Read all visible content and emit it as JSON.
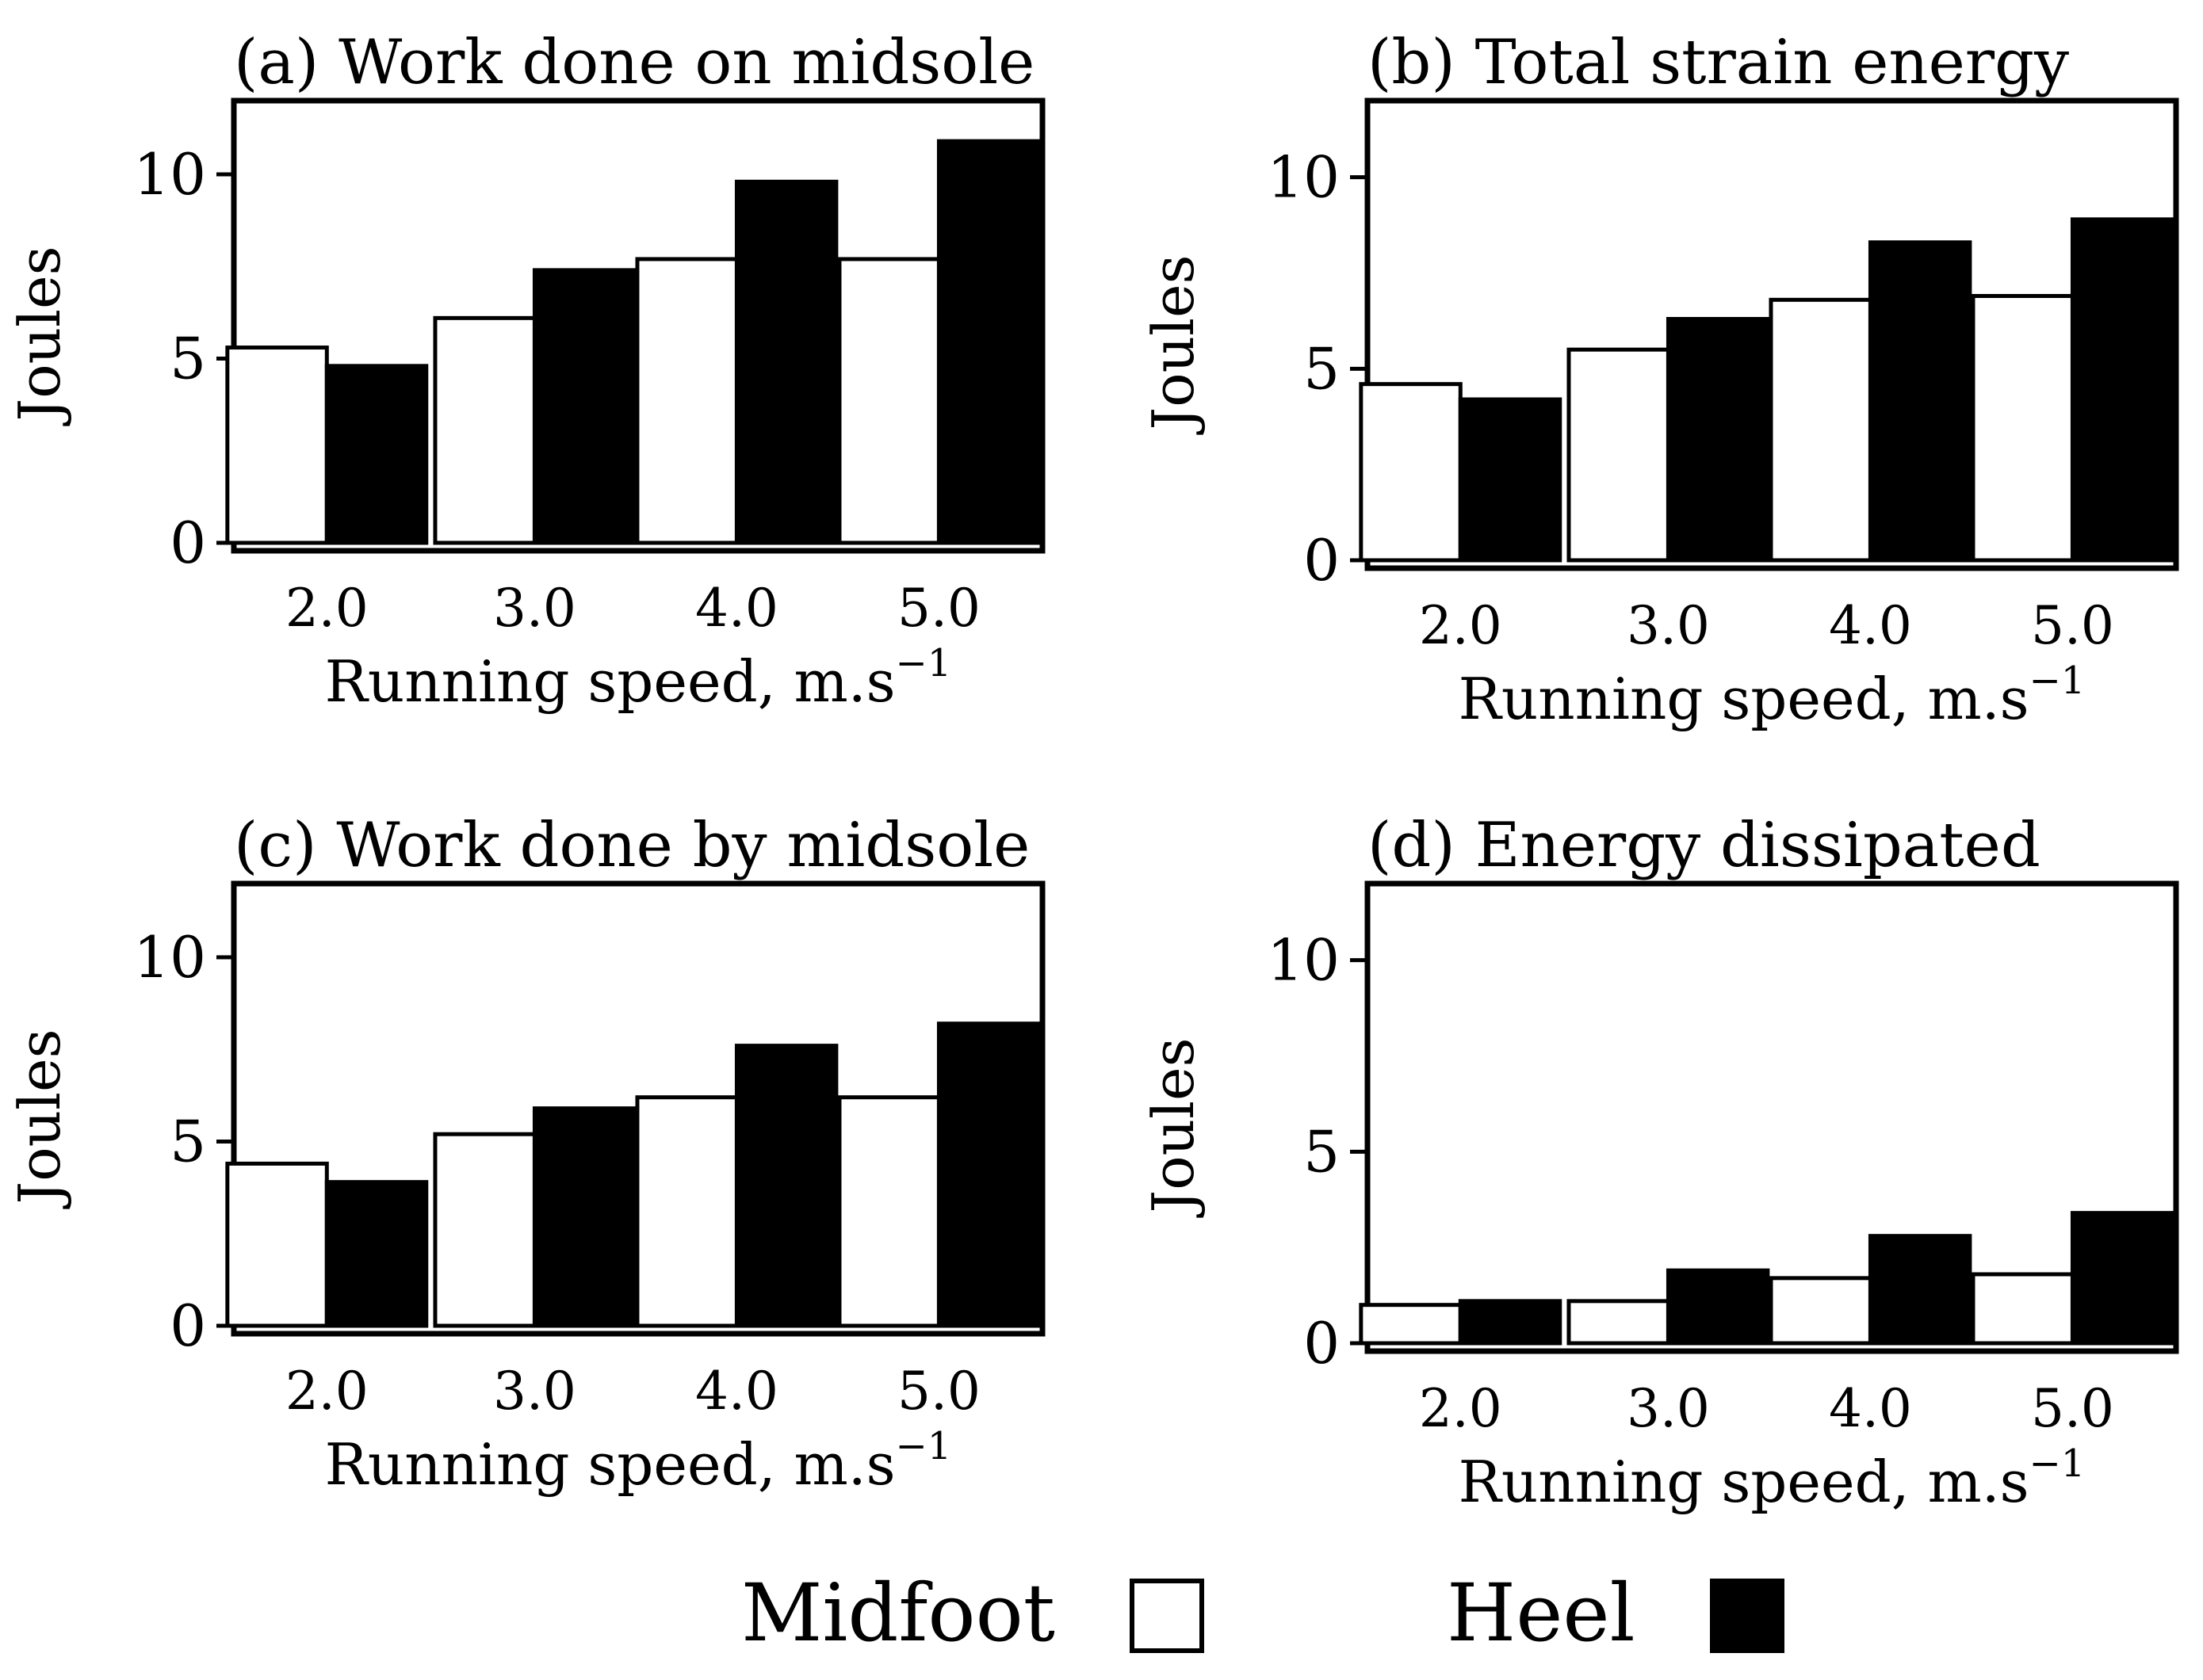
{
  "figure": {
    "legend": [
      {
        "label": "Midfoot",
        "color": "#ffffff"
      },
      {
        "label": "Heel",
        "color": "#000000"
      }
    ]
  },
  "chart_data": [
    {
      "type": "bar",
      "panel": "a",
      "title": "(a) Work done on midsole",
      "categories": [
        "2.0",
        "3.0",
        "4.0",
        "5.0"
      ],
      "xlabel": "Running speed, m.s",
      "xlabel_superscript": "−1",
      "ylabel": "Joules",
      "ylim": [
        0,
        12
      ],
      "yticks": [
        "0",
        "5",
        "10"
      ],
      "series": [
        {
          "name": "Midfoot",
          "values": [
            5.3,
            6.1,
            7.7,
            7.7
          ]
        },
        {
          "name": "Heel",
          "values": [
            4.8,
            7.4,
            9.8,
            10.9
          ]
        }
      ]
    },
    {
      "type": "bar",
      "panel": "b",
      "title": "(b) Total strain energy",
      "categories": [
        "2.0",
        "3.0",
        "4.0",
        "5.0"
      ],
      "xlabel": "Running speed, m.s",
      "xlabel_superscript": "−1",
      "ylabel": "Joules",
      "ylim": [
        0,
        12
      ],
      "yticks": [
        "0",
        "5",
        "10"
      ],
      "series": [
        {
          "name": "Midfoot",
          "values": [
            4.6,
            5.5,
            6.8,
            6.9
          ]
        },
        {
          "name": "Heel",
          "values": [
            4.2,
            6.3,
            8.3,
            8.9
          ]
        }
      ]
    },
    {
      "type": "bar",
      "panel": "c",
      "title": "(c) Work done by midsole",
      "categories": [
        "2.0",
        "3.0",
        "4.0",
        "5.0"
      ],
      "xlabel": "Running speed, m.s",
      "xlabel_superscript": "−1",
      "ylabel": "Joules",
      "ylim": [
        0,
        12
      ],
      "yticks": [
        "0",
        "5",
        "10"
      ],
      "series": [
        {
          "name": "Midfoot",
          "values": [
            4.4,
            5.2,
            6.2,
            6.2
          ]
        },
        {
          "name": "Heel",
          "values": [
            3.9,
            5.9,
            7.6,
            8.2
          ]
        }
      ]
    },
    {
      "type": "bar",
      "panel": "d",
      "title": "(d) Energy dissipated",
      "categories": [
        "2.0",
        "3.0",
        "4.0",
        "5.0"
      ],
      "xlabel": "Running speed, m.s",
      "xlabel_superscript": "−1",
      "ylabel": "Joules",
      "ylim": [
        0,
        12
      ],
      "yticks": [
        "0",
        "5",
        "10"
      ],
      "series": [
        {
          "name": "Midfoot",
          "values": [
            1.0,
            1.1,
            1.7,
            1.8
          ]
        },
        {
          "name": "Heel",
          "values": [
            1.1,
            1.9,
            2.8,
            3.4
          ]
        }
      ]
    }
  ]
}
